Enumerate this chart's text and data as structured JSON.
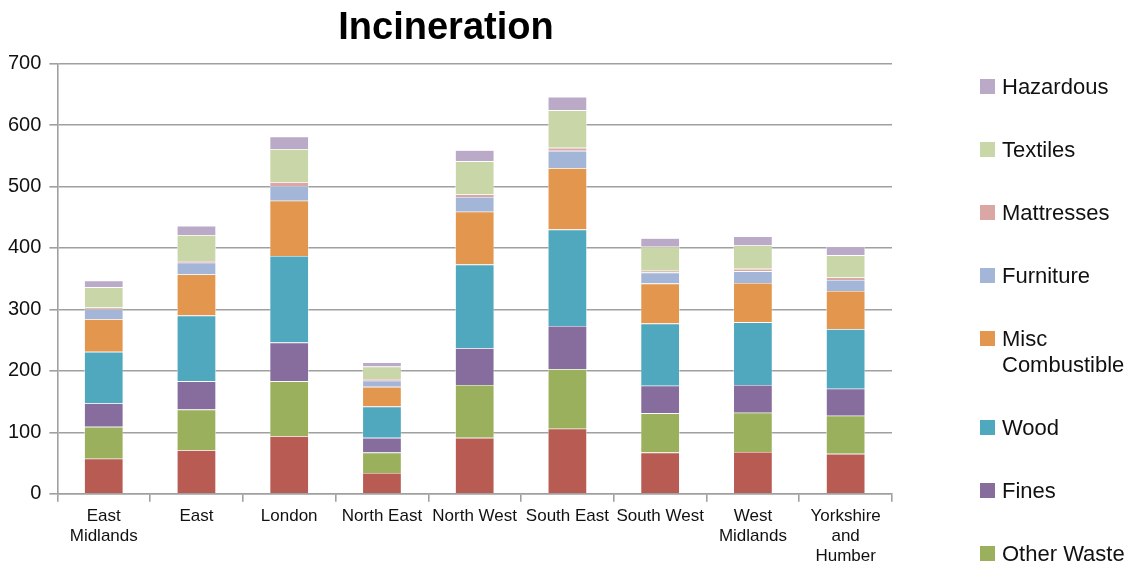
{
  "chart_data": {
    "type": "bar",
    "title": "Incineration",
    "stacked": true,
    "grid": "y",
    "legend": "right",
    "categories": [
      "East Midlands",
      "East",
      "London",
      "North East",
      "North West",
      "South East",
      "South West",
      "West Midlands",
      "Yorkshire and Humber"
    ],
    "ylim": [
      0,
      700
    ],
    "yticks": [
      0,
      100,
      200,
      300,
      400,
      500,
      600,
      700
    ],
    "series": [
      {
        "color": "#b85b53",
        "values": [
          57,
          71,
          94,
          34,
          91,
          106,
          67,
          68,
          65
        ]
      },
      {
        "name": "Other Waste",
        "color": "#9bb05c",
        "values": [
          52,
          66,
          89,
          33,
          86,
          97,
          64,
          64,
          62
        ]
      },
      {
        "name": "Fines",
        "color": "#866d9e",
        "values": [
          38,
          46,
          63,
          24,
          60,
          70,
          45,
          45,
          44
        ]
      },
      {
        "name": "Wood",
        "color": "#50a8bf",
        "values": [
          84,
          107,
          141,
          51,
          136,
          157,
          101,
          102,
          97
        ]
      },
      {
        "name": "Misc Combustible",
        "color": "#e2964e",
        "values": [
          53,
          67,
          90,
          32,
          86,
          100,
          65,
          64,
          62
        ]
      },
      {
        "name": "Furniture",
        "color": "#a3b6d7",
        "values": [
          16,
          19,
          24,
          10,
          24,
          28,
          18,
          19,
          18
        ]
      },
      {
        "name": "Mattresses",
        "color": "#dba7a4",
        "values": [
          3,
          3,
          6,
          3,
          4,
          5,
          3,
          4,
          4
        ]
      },
      {
        "name": "Textiles",
        "color": "#c8d6a8",
        "values": [
          33,
          42,
          54,
          20,
          54,
          61,
          39,
          38,
          36
        ]
      },
      {
        "name": "Hazardous",
        "color": "#baaac8",
        "values": [
          11,
          15,
          20,
          7,
          18,
          22,
          14,
          15,
          14
        ]
      }
    ]
  }
}
